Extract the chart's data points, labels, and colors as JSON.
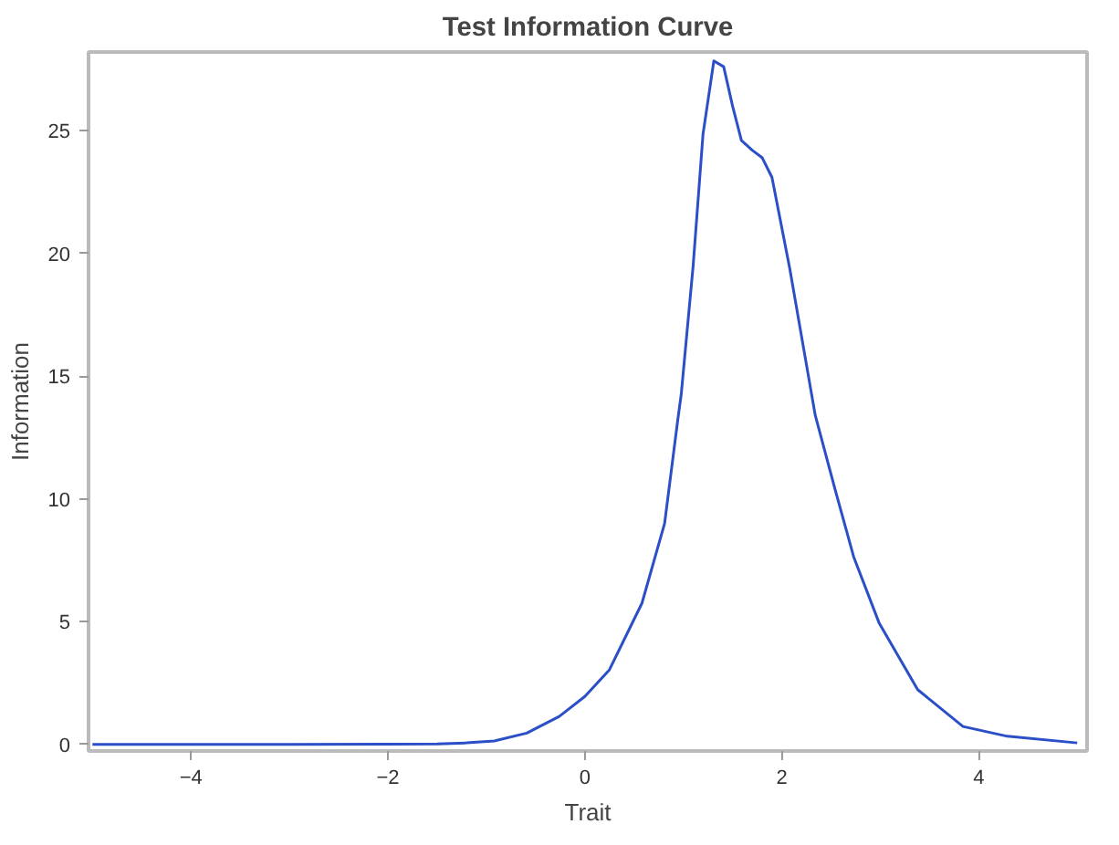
{
  "chart_data": {
    "type": "line",
    "title": "Test Information Curve",
    "xlabel": "Trait",
    "ylabel": "Information",
    "xlim": [
      -5.04,
      5.1
    ],
    "ylim": [
      -0.27,
      28.2
    ],
    "xticks": [
      -4,
      -2,
      0,
      2,
      4
    ],
    "yticks": [
      0,
      5,
      10,
      15,
      20,
      25
    ],
    "grid": false,
    "series": [
      {
        "color": "#2a4fc6",
        "x": [
          -5,
          -4,
          -3,
          -2,
          -1.5,
          -1.2,
          -0.92,
          -0.59,
          -0.26,
          0,
          0.25,
          0.58,
          0.81,
          0.94,
          0.98,
          1.1,
          1.2,
          1.31,
          1.41,
          1.5,
          1.59,
          1.7,
          1.8,
          1.9,
          2.08,
          2.34,
          2.54,
          2.73,
          2.99,
          3.38,
          3.84,
          4.29,
          5
        ],
        "values": [
          0,
          0,
          0,
          0.01,
          0.02,
          0.06,
          0.14,
          0.46,
          1.14,
          1.95,
          3.04,
          5.75,
          9.0,
          13.1,
          14.3,
          19.5,
          24.85,
          27.84,
          27.6,
          26.0,
          24.6,
          24.2,
          23.9,
          23.1,
          19.4,
          13.4,
          10.4,
          7.64,
          4.93,
          2.23,
          0.73,
          0.33,
          0.06
        ]
      }
    ]
  }
}
